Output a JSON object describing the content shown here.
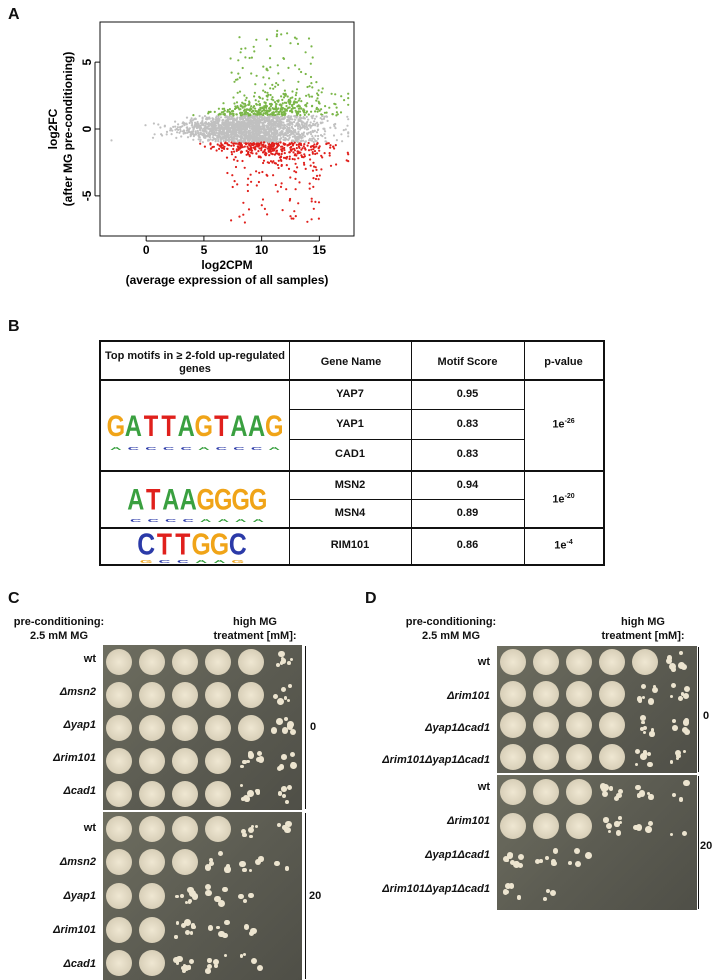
{
  "panels": {
    "a": "A",
    "b": "B",
    "c": "C",
    "d": "D"
  },
  "chart_data": {
    "type": "scatter",
    "xlabel": "log2CPM",
    "xlabel_sub": "(average expression of all samples)",
    "ylabel": "log2FC",
    "ylabel_sub": "(after MG pre-conditioning)",
    "xlim": [
      -4,
      18
    ],
    "ylim": [
      -8,
      8
    ],
    "xticks": [
      0,
      5,
      10,
      15
    ],
    "yticks": [
      -5,
      0,
      5
    ],
    "series": [
      {
        "color": "#7ab648",
        "meaning": "up-regulated"
      },
      {
        "color": "#c0c0c0",
        "meaning": "not significant"
      },
      {
        "color": "#e0201c",
        "meaning": "down-regulated"
      }
    ]
  },
  "table": {
    "headers": [
      "Top motifs in ≥ 2-fold up-regulated genes",
      "Gene Name",
      "Motif Score",
      "p-value"
    ],
    "groups": [
      {
        "rows": [
          {
            "gene": "YAP7",
            "score": "0.95"
          },
          {
            "gene": "YAP1",
            "score": "0.83"
          },
          {
            "gene": "CAD1",
            "score": "0.83"
          }
        ],
        "p_base": "1e",
        "p_exp": "-26",
        "logo": "GATTAGTAAG"
      },
      {
        "rows": [
          {
            "gene": "MSN2",
            "score": "0.94"
          },
          {
            "gene": "MSN4",
            "score": "0.89"
          }
        ],
        "p_base": "1e",
        "p_exp": "-20",
        "logo": "ATAAGGGG"
      },
      {
        "rows": [
          {
            "gene": "RIM101",
            "score": "0.86"
          }
        ],
        "p_base": "1e",
        "p_exp": "-4",
        "logo": "CTTGGC"
      }
    ]
  },
  "panel_c": {
    "pre_line1": "pre-conditioning:",
    "pre_line2": "2.5 mM MG",
    "high_line1": "high MG",
    "high_line2": "treatment [mM]:",
    "top_rows": [
      "wt",
      "Δmsn2",
      "Δyap1",
      "Δrim101",
      "Δcad1"
    ],
    "bottom_rows": [
      "wt",
      "Δmsn2",
      "Δyap1",
      "Δrim101",
      "Δcad1"
    ],
    "dose_top": "0",
    "dose_bottom": "20"
  },
  "panel_d": {
    "pre_line1": "pre-conditioning:",
    "pre_line2": "2.5 mM MG",
    "high_line1": "high MG",
    "high_line2": "treatment [mM]:",
    "top_rows": [
      "wt",
      "Δrim101",
      "Δyap1Δcad1",
      "Δrim101Δyap1Δcad1"
    ],
    "bottom_rows": [
      "wt",
      "Δrim101",
      "Δyap1Δcad1",
      "Δrim101Δyap1Δcad1"
    ],
    "dose_top": "0",
    "dose_bottom": "20"
  },
  "logo_colors": {
    "A": "#3aa040",
    "C": "#2b3aa8",
    "G": "#f0a418",
    "T": "#e0201c"
  }
}
